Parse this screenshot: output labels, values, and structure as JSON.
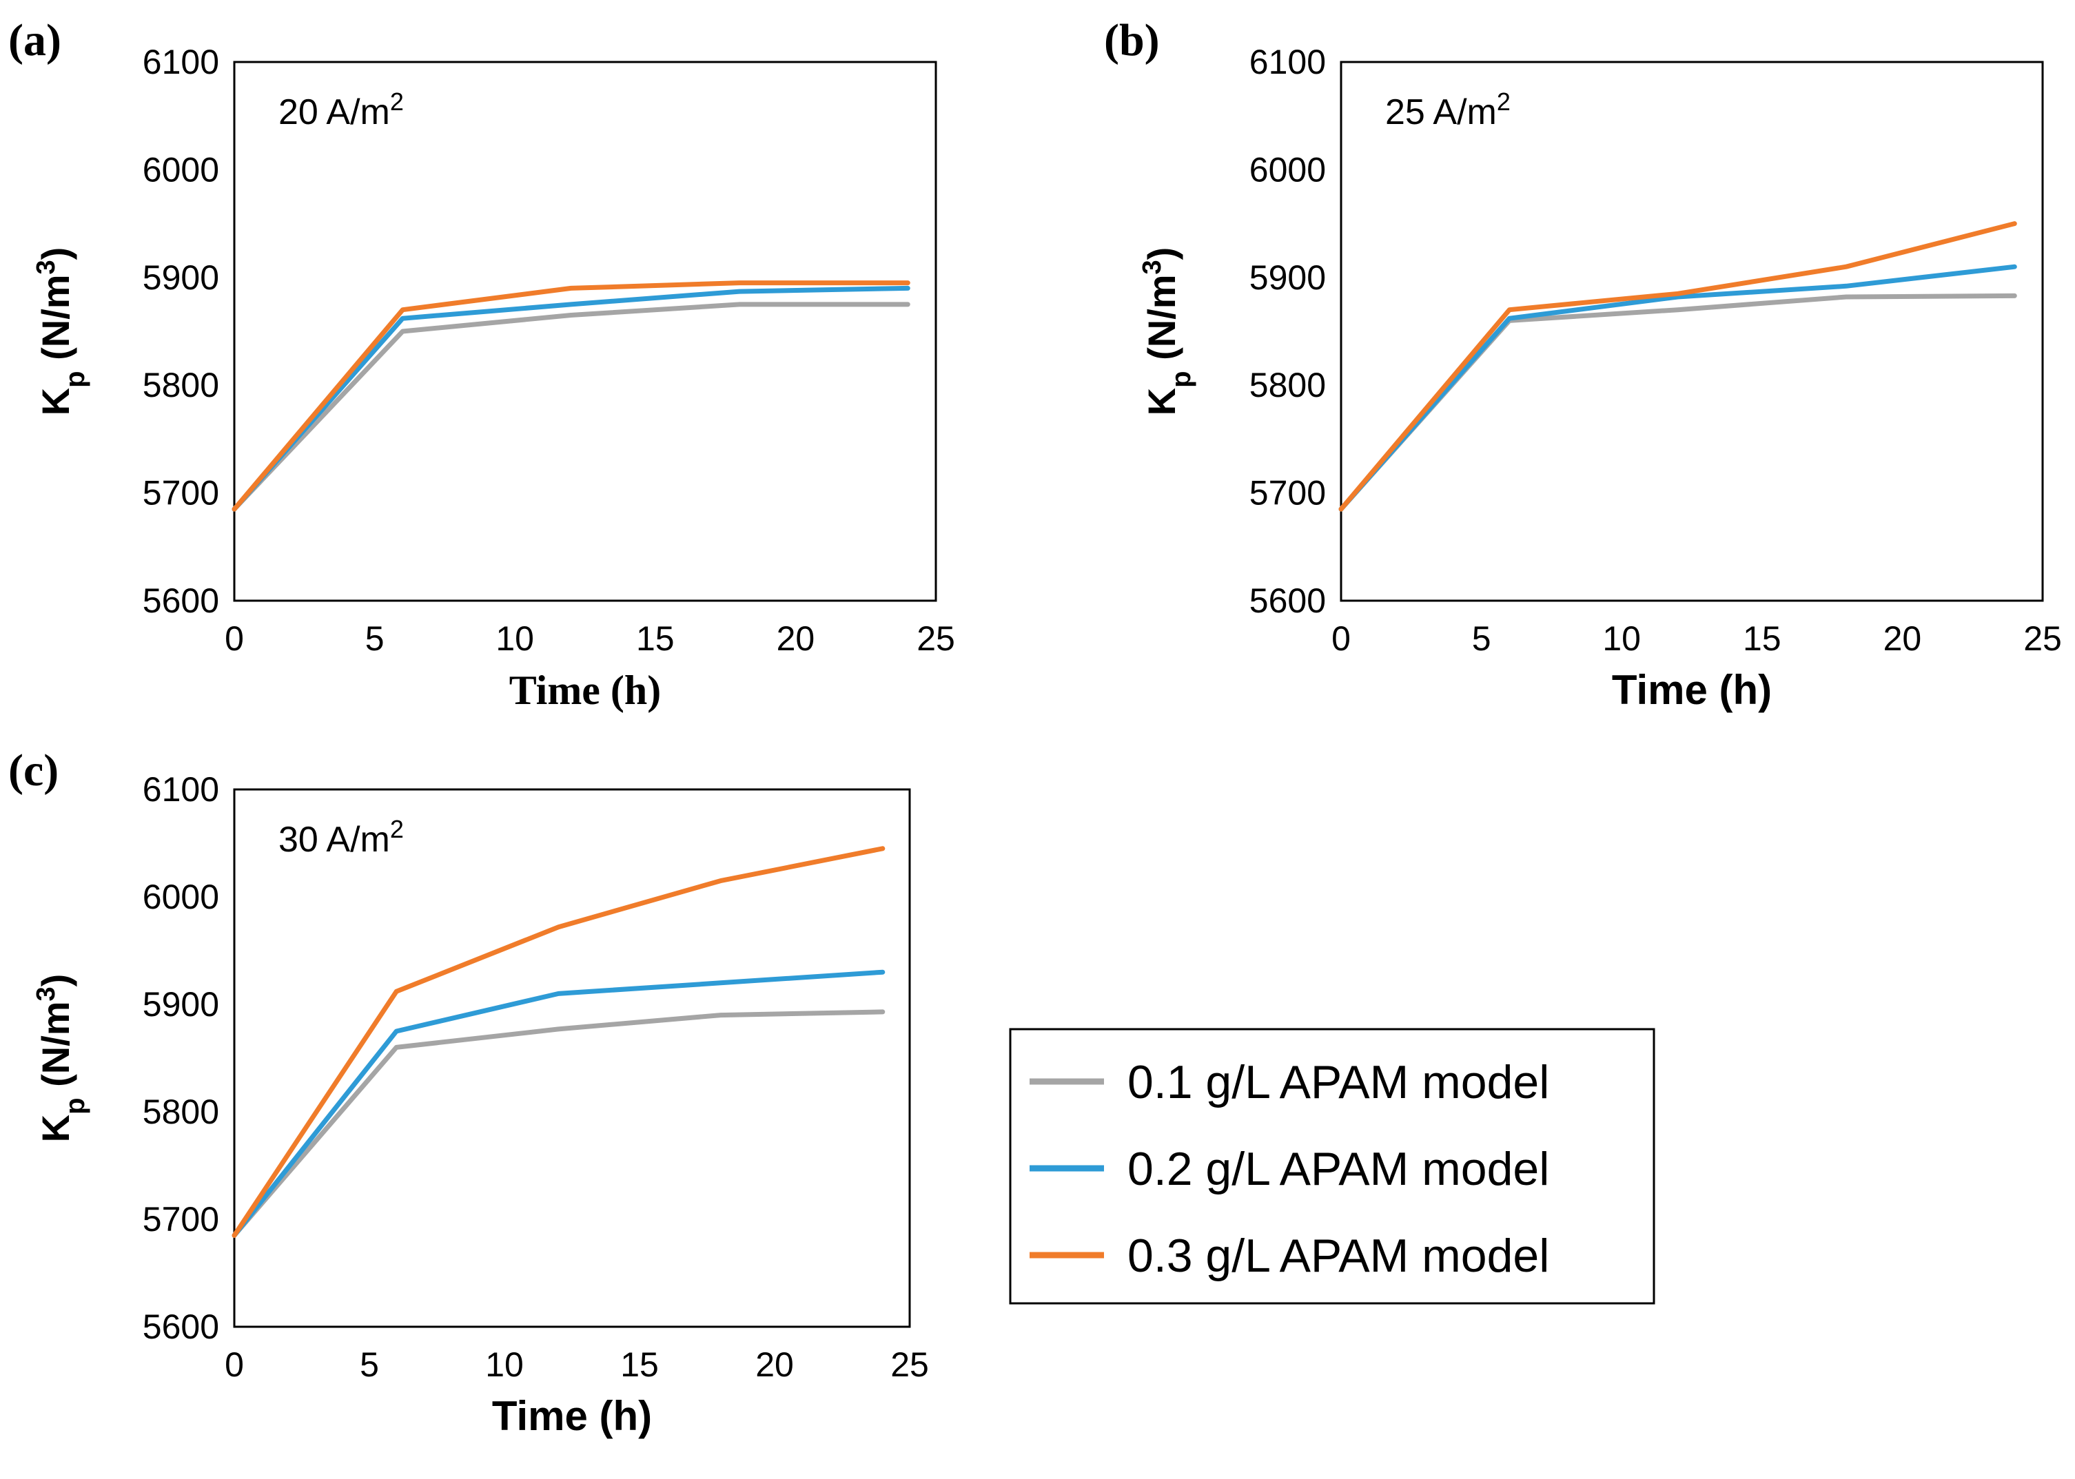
{
  "chart_data": [
    {
      "type": "line",
      "panel_label": "(a)",
      "annotation": {
        "text": "20 A/m",
        "sup": "2"
      },
      "xlabel": "Time (h)",
      "ylabel": {
        "main": "K",
        "sub": "p",
        "unit_open": " (N/m",
        "unit_sup": "3",
        "unit_close": ")"
      },
      "xlim": [
        0,
        25
      ],
      "ylim": [
        5600,
        6100
      ],
      "xticks": [
        0,
        5,
        10,
        15,
        20,
        25
      ],
      "yticks": [
        5600,
        5700,
        5800,
        5900,
        6000,
        6100
      ],
      "x": [
        0,
        6,
        12,
        18,
        24
      ],
      "series": [
        {
          "name": "0.1 g/L APAM model",
          "color": "#a5a5a5",
          "values": [
            5685,
            5850,
            5865,
            5875,
            5875
          ]
        },
        {
          "name": "0.2 g/L APAM model",
          "color": "#2e9bd6",
          "values": [
            5685,
            5862,
            5875,
            5887,
            5890
          ]
        },
        {
          "name": "0.3 g/L APAM model",
          "color": "#f07c2a",
          "values": [
            5685,
            5870,
            5890,
            5895,
            5895
          ]
        }
      ]
    },
    {
      "type": "line",
      "panel_label": "(b)",
      "annotation": {
        "text": "25 A/m",
        "sup": "2"
      },
      "xlabel": "Time (h)",
      "ylabel": {
        "main": "K",
        "sub": "p",
        "unit_open": " (N/m",
        "unit_sup": "3",
        "unit_close": ")"
      },
      "xlim": [
        0,
        25
      ],
      "ylim": [
        5600,
        6100
      ],
      "xticks": [
        0,
        5,
        10,
        15,
        20,
        25
      ],
      "yticks": [
        5600,
        5700,
        5800,
        5900,
        6000,
        6100
      ],
      "x": [
        0,
        6,
        12,
        18,
        24
      ],
      "series": [
        {
          "name": "0.1 g/L APAM model",
          "color": "#a5a5a5",
          "values": [
            5685,
            5860,
            5870,
            5882,
            5883
          ]
        },
        {
          "name": "0.2 g/L APAM model",
          "color": "#2e9bd6",
          "values": [
            5685,
            5862,
            5882,
            5892,
            5910
          ]
        },
        {
          "name": "0.3 g/L APAM model",
          "color": "#f07c2a",
          "values": [
            5685,
            5870,
            5885,
            5910,
            5950
          ]
        }
      ]
    },
    {
      "type": "line",
      "panel_label": "(c)",
      "annotation": {
        "text": "30 A/m",
        "sup": "2"
      },
      "xlabel": "Time (h)",
      "ylabel": {
        "main": "K",
        "sub": "p",
        "unit_open": " (N/m",
        "unit_sup": "3",
        "unit_close": ")"
      },
      "xlim": [
        0,
        25
      ],
      "ylim": [
        5600,
        6100
      ],
      "xticks": [
        0,
        5,
        10,
        15,
        20,
        25
      ],
      "yticks": [
        5600,
        5700,
        5800,
        5900,
        6000,
        6100
      ],
      "x": [
        0,
        6,
        12,
        18,
        24
      ],
      "series": [
        {
          "name": "0.1 g/L APAM model",
          "color": "#a5a5a5",
          "values": [
            5685,
            5860,
            5877,
            5890,
            5893
          ]
        },
        {
          "name": "0.2 g/L APAM model",
          "color": "#2e9bd6",
          "values": [
            5685,
            5875,
            5910,
            5920,
            5930
          ]
        },
        {
          "name": "0.3 g/L APAM model",
          "color": "#f07c2a",
          "values": [
            5685,
            5912,
            5972,
            6015,
            6045
          ]
        }
      ]
    }
  ],
  "legend": {
    "items": [
      {
        "label": "0.1 g/L APAM model",
        "color": "#a5a5a5"
      },
      {
        "label": "0.2 g/L APAM model",
        "color": "#2e9bd6"
      },
      {
        "label": "0.3 g/L APAM model",
        "color": "#f07c2a"
      }
    ]
  }
}
